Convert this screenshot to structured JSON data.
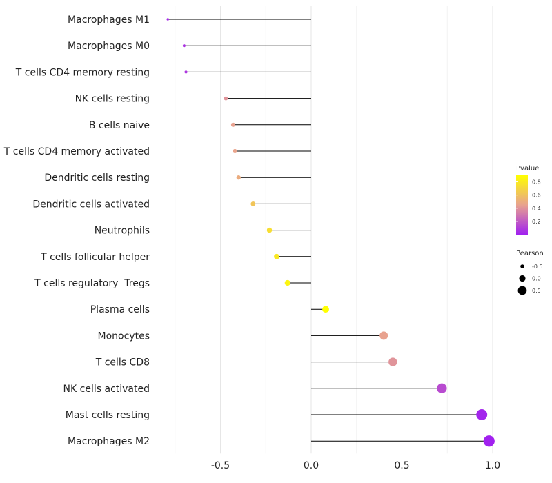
{
  "chart_data": {
    "type": "lollipop",
    "title": "",
    "xlabel": "",
    "ylabel": "",
    "xlim": [
      -0.75,
      1.0
    ],
    "xticks": [
      -0.5,
      0.0,
      0.5,
      1.0
    ],
    "xtick_labels": [
      "-0.5",
      "0.0",
      "0.5",
      "1.0"
    ],
    "grid": true,
    "points": [
      {
        "label": "Macrophages M1",
        "pearson": -0.79,
        "pvalue": 0.03
      },
      {
        "label": "Macrophages M0",
        "pearson": -0.7,
        "pvalue": 0.07
      },
      {
        "label": "T cells CD4 memory resting",
        "pearson": -0.69,
        "pvalue": 0.08
      },
      {
        "label": "NK cells resting",
        "pearson": -0.47,
        "pvalue": 0.4
      },
      {
        "label": "B cells naive",
        "pearson": -0.43,
        "pvalue": 0.45
      },
      {
        "label": "T cells CD4 memory activated",
        "pearson": -0.42,
        "pvalue": 0.46
      },
      {
        "label": "Dendritic cells resting",
        "pearson": -0.4,
        "pvalue": 0.5
      },
      {
        "label": "Dendritic cells activated",
        "pearson": -0.32,
        "pvalue": 0.62
      },
      {
        "label": "Neutrophils",
        "pearson": -0.23,
        "pvalue": 0.74
      },
      {
        "label": "T cells follicular helper",
        "pearson": -0.19,
        "pvalue": 0.79
      },
      {
        "label": "T cells regulatory  Tregs",
        "pearson": -0.13,
        "pvalue": 0.85
      },
      {
        "label": "Plasma cells",
        "pearson": 0.08,
        "pvalue": 0.9
      },
      {
        "label": "Monocytes",
        "pearson": 0.4,
        "pvalue": 0.45
      },
      {
        "label": "T cells CD8",
        "pearson": 0.45,
        "pvalue": 0.4
      },
      {
        "label": "NK cells activated",
        "pearson": 0.72,
        "pvalue": 0.15
      },
      {
        "label": "Mast cells resting",
        "pearson": 0.94,
        "pvalue": 0.02
      },
      {
        "label": "Macrophages M2",
        "pearson": 0.98,
        "pvalue": 0.005
      }
    ],
    "legend_color": {
      "title": "Pvalue",
      "range": [
        0.0,
        0.9
      ],
      "ticks": [
        0.2,
        0.4,
        0.6,
        0.8
      ],
      "tick_labels": [
        "0.2",
        "0.4",
        "0.6",
        "0.8"
      ],
      "low_color": "#A020F0",
      "mid_color": "#E8A28F",
      "high_color": "#FFFF00"
    },
    "legend_size": {
      "title": "Pearson",
      "values": [
        -0.5,
        0.0,
        0.5
      ],
      "labels": [
        "-0.5",
        "0.0",
        "0.5"
      ]
    },
    "legend_placement": "right"
  }
}
